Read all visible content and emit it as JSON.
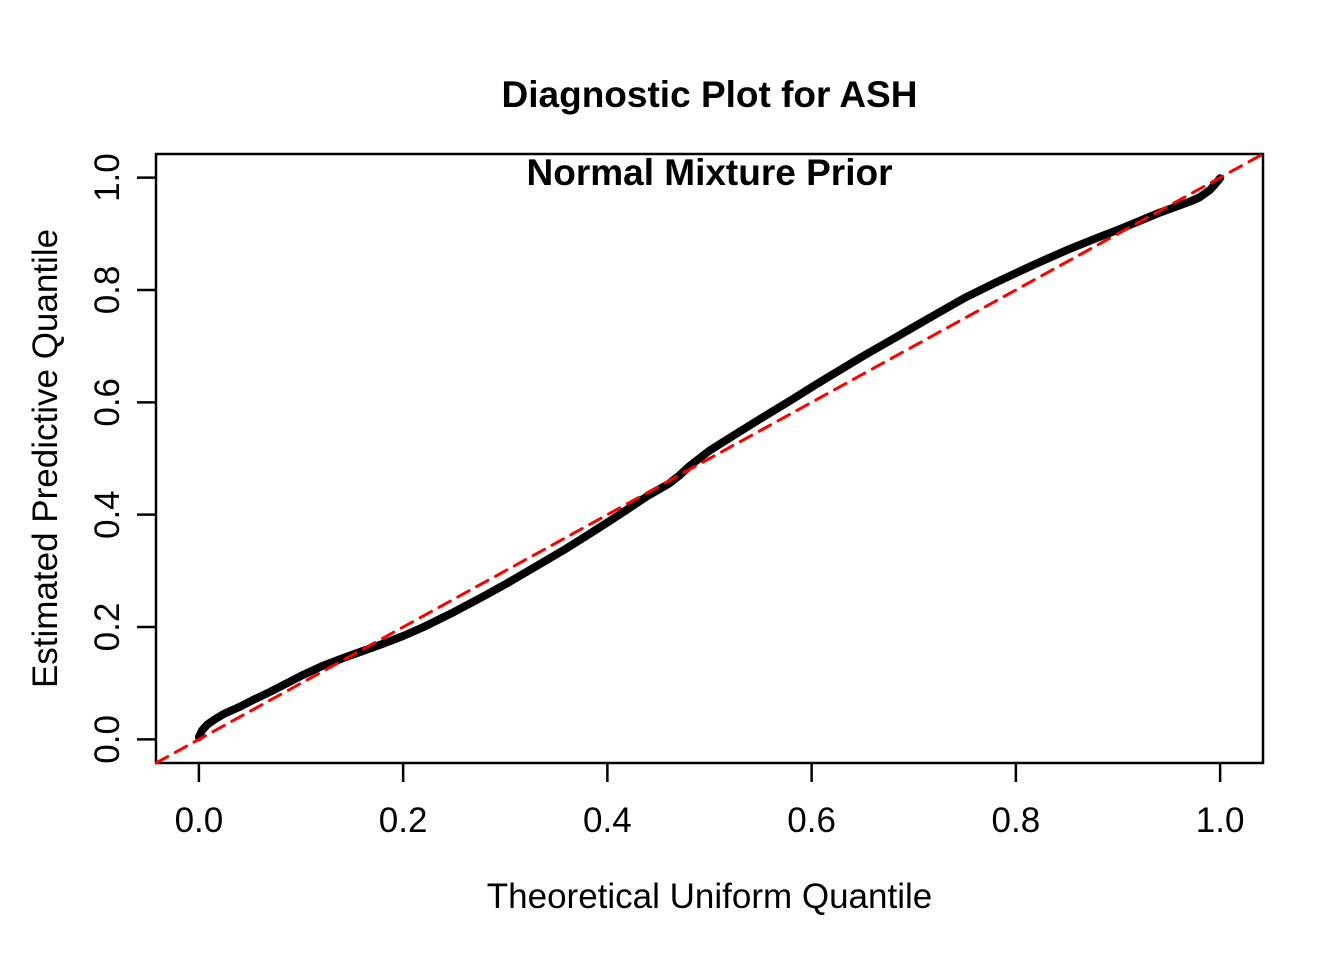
{
  "figure": {
    "title_line1": "Diagnostic Plot for ASH",
    "title_line2": "Normal Mixture Prior",
    "background_color": "#FFFFFF",
    "text_color": "#000000"
  },
  "chart_data": {
    "type": "line",
    "title": "Diagnostic Plot for ASH\nNormal Mixture Prior",
    "xlabel": "Theoretical Uniform Quantile",
    "ylabel": "Estimated Predictive Quantile",
    "xlim": [
      -0.042,
      1.042
    ],
    "ylim": [
      -0.042,
      1.042
    ],
    "grid": false,
    "legend": "none",
    "x_ticks": {
      "values": [
        0.0,
        0.2,
        0.4,
        0.6,
        0.8,
        1.0
      ],
      "labels": [
        "0.0",
        "0.2",
        "0.4",
        "0.6",
        "0.8",
        "1.0"
      ]
    },
    "y_ticks": {
      "values": [
        0.0,
        0.2,
        0.4,
        0.6,
        0.8,
        1.0
      ],
      "labels": [
        "0.0",
        "0.2",
        "0.4",
        "0.6",
        "0.8",
        "1.0"
      ]
    },
    "series": [
      {
        "name": "estimated-predictive-quantile-curve",
        "color": "#000000",
        "line_style": "solid",
        "line_width": 8,
        "points": [
          [
            0.0,
            0.004
          ],
          [
            0.003,
            0.016
          ],
          [
            0.008,
            0.026
          ],
          [
            0.015,
            0.035
          ],
          [
            0.025,
            0.046
          ],
          [
            0.04,
            0.058
          ],
          [
            0.055,
            0.072
          ],
          [
            0.07,
            0.085
          ],
          [
            0.085,
            0.099
          ],
          [
            0.1,
            0.113
          ],
          [
            0.12,
            0.13
          ],
          [
            0.14,
            0.144
          ],
          [
            0.16,
            0.157
          ],
          [
            0.18,
            0.17
          ],
          [
            0.2,
            0.184
          ],
          [
            0.22,
            0.2
          ],
          [
            0.25,
            0.227
          ],
          [
            0.28,
            0.256
          ],
          [
            0.3,
            0.276
          ],
          [
            0.33,
            0.308
          ],
          [
            0.36,
            0.34
          ],
          [
            0.38,
            0.363
          ],
          [
            0.4,
            0.386
          ],
          [
            0.42,
            0.41
          ],
          [
            0.44,
            0.434
          ],
          [
            0.46,
            0.455
          ],
          [
            0.47,
            0.469
          ],
          [
            0.48,
            0.486
          ],
          [
            0.5,
            0.514
          ],
          [
            0.52,
            0.537
          ],
          [
            0.55,
            0.571
          ],
          [
            0.58,
            0.604
          ],
          [
            0.6,
            0.627
          ],
          [
            0.62,
            0.649
          ],
          [
            0.65,
            0.682
          ],
          [
            0.68,
            0.713
          ],
          [
            0.7,
            0.734
          ],
          [
            0.72,
            0.755
          ],
          [
            0.75,
            0.786
          ],
          [
            0.78,
            0.813
          ],
          [
            0.8,
            0.83
          ],
          [
            0.82,
            0.847
          ],
          [
            0.85,
            0.871
          ],
          [
            0.88,
            0.893
          ],
          [
            0.9,
            0.907
          ],
          [
            0.92,
            0.922
          ],
          [
            0.94,
            0.937
          ],
          [
            0.955,
            0.947
          ],
          [
            0.97,
            0.957
          ],
          [
            0.98,
            0.965
          ],
          [
            0.99,
            0.978
          ],
          [
            0.995,
            0.988
          ],
          [
            1.0,
            0.999
          ]
        ]
      },
      {
        "name": "reference-diagonal-y-equals-x",
        "color": "#FF0000",
        "line_style": "dashed",
        "line_width": 3,
        "points": [
          [
            -0.0416,
            -0.0416
          ],
          [
            1.0416,
            1.0416
          ]
        ]
      }
    ]
  }
}
